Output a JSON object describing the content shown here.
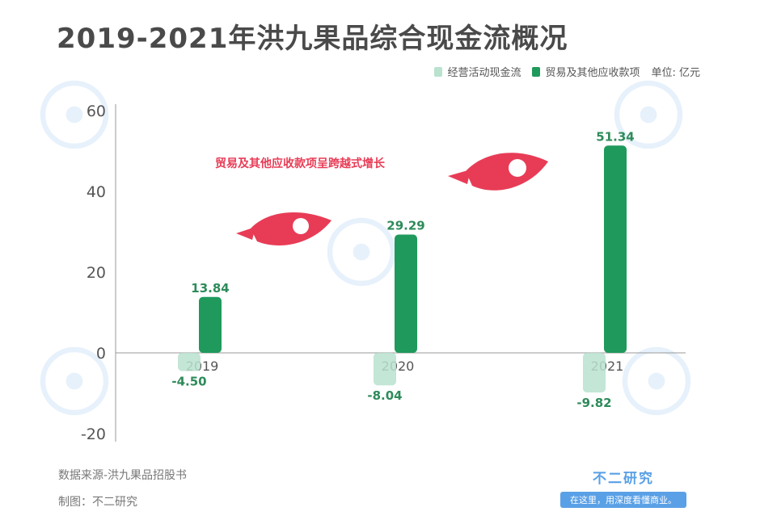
{
  "title": "2019-2021年洪九果品综合现金流概况",
  "legend": {
    "items": [
      {
        "label": "经营活动现金流",
        "color": "#b9e2cf"
      },
      {
        "label": "贸易及其他应收款项",
        "color": "#1f9a5c"
      }
    ],
    "unit": "单位: 亿元"
  },
  "annotation": "贸易及其他应收款项呈跨越式增长",
  "source": "数据来源-洪九果品招股书",
  "maker": "制图：不二研究",
  "brand": {
    "name": "不二研究",
    "slogan": "在这里，用深度看懂商业。"
  },
  "colors": {
    "light": "#b9e2cf",
    "dark": "#1f9a5c",
    "label": "#2e8b5a",
    "rocket": "#e83c56"
  },
  "chart_data": {
    "type": "bar",
    "categories": [
      "2019",
      "2020",
      "2021"
    ],
    "series": [
      {
        "name": "经营活动现金流",
        "values": [
          -4.5,
          -8.04,
          -9.82
        ]
      },
      {
        "name": "贸易及其他应收款项",
        "values": [
          13.84,
          29.29,
          51.34
        ]
      }
    ],
    "value_labels": [
      [
        "-4.50",
        "-8.04",
        "-9.82"
      ],
      [
        "13.84",
        "29.29",
        "51.34"
      ]
    ],
    "yticks": [
      "60",
      "40",
      "20",
      "0",
      "-20"
    ],
    "ylim": [
      -20,
      60
    ],
    "legend_position": "top-right",
    "grid": false
  }
}
